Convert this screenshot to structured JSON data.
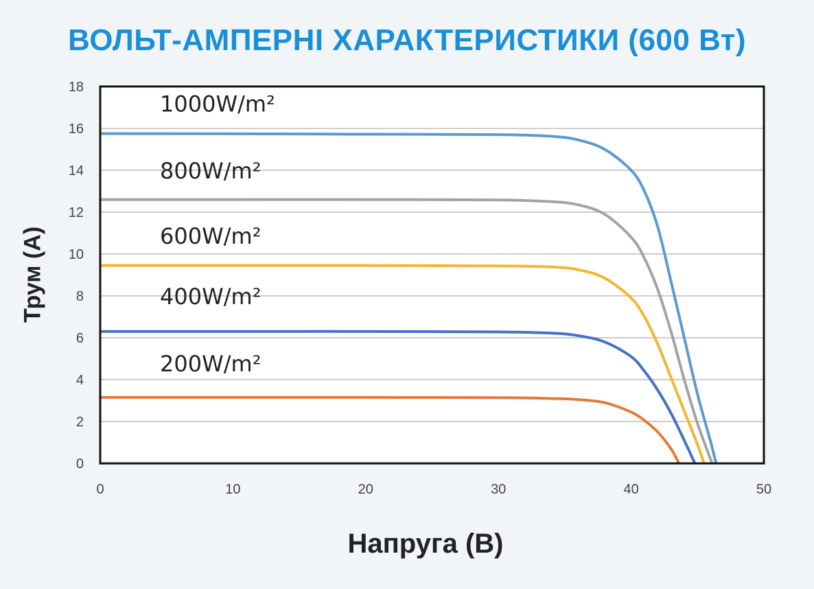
{
  "chart_data": {
    "type": "line",
    "title": "ВОЛЬТ-АМПЕРНІ ХАРАКТЕРИСТИКИ (600 Вт)",
    "xlabel": "Напруга (В)",
    "ylabel": "Трум (А)",
    "xlim": [
      0,
      50
    ],
    "ylim": [
      0,
      18
    ],
    "xticks": [
      "0",
      "10",
      "20",
      "30",
      "40",
      "50"
    ],
    "yticks": [
      "0",
      "2",
      "4",
      "6",
      "8",
      "10",
      "12",
      "14",
      "16",
      "18"
    ],
    "grid": "horizontal",
    "series": [
      {
        "name": "1000W/m²",
        "color": "#5b9bd0",
        "label_x": 4.5,
        "label_y": 16.8,
        "points": [
          [
            0,
            15.75
          ],
          [
            10,
            15.74
          ],
          [
            20,
            15.72
          ],
          [
            30,
            15.7
          ],
          [
            34,
            15.62
          ],
          [
            36,
            15.45
          ],
          [
            38,
            15.0
          ],
          [
            40,
            14.0
          ],
          [
            41,
            13.0
          ],
          [
            42,
            11.3
          ],
          [
            43,
            8.7
          ],
          [
            44,
            6.0
          ],
          [
            45,
            3.3
          ],
          [
            46,
            1.0
          ],
          [
            46.4,
            0
          ]
        ]
      },
      {
        "name": "800W/m²",
        "color": "#a3a3a3",
        "label_x": 4.5,
        "label_y": 13.6,
        "points": [
          [
            0,
            12.6
          ],
          [
            10,
            12.6
          ],
          [
            20,
            12.6
          ],
          [
            30,
            12.58
          ],
          [
            34,
            12.5
          ],
          [
            36,
            12.35
          ],
          [
            38,
            11.9
          ],
          [
            40,
            10.8
          ],
          [
            41,
            9.8
          ],
          [
            42,
            8.3
          ],
          [
            43,
            6.3
          ],
          [
            44,
            4.0
          ],
          [
            45,
            1.9
          ],
          [
            46.1,
            0
          ]
        ]
      },
      {
        "name": "600W/m²",
        "color": "#f2b631",
        "label_x": 4.5,
        "label_y": 10.5,
        "points": [
          [
            0,
            9.45
          ],
          [
            10,
            9.45
          ],
          [
            20,
            9.45
          ],
          [
            30,
            9.43
          ],
          [
            34,
            9.38
          ],
          [
            36,
            9.25
          ],
          [
            38,
            8.85
          ],
          [
            40,
            7.9
          ],
          [
            41,
            7.0
          ],
          [
            42,
            5.7
          ],
          [
            43,
            4.1
          ],
          [
            44,
            2.5
          ],
          [
            45,
            0.9
          ],
          [
            45.5,
            0
          ]
        ]
      },
      {
        "name": "400W/m²",
        "color": "#4472c4",
        "label_x": 4.5,
        "label_y": 7.6,
        "points": [
          [
            0,
            6.3
          ],
          [
            10,
            6.3
          ],
          [
            20,
            6.3
          ],
          [
            30,
            6.28
          ],
          [
            34,
            6.22
          ],
          [
            36,
            6.1
          ],
          [
            38,
            5.8
          ],
          [
            40,
            5.1
          ],
          [
            41,
            4.4
          ],
          [
            42,
            3.5
          ],
          [
            43,
            2.4
          ],
          [
            44,
            1.1
          ],
          [
            44.8,
            0
          ]
        ]
      },
      {
        "name": "200W/m²",
        "color": "#e07b3c",
        "label_x": 4.5,
        "label_y": 4.4,
        "points": [
          [
            0,
            3.15
          ],
          [
            10,
            3.15
          ],
          [
            20,
            3.15
          ],
          [
            30,
            3.14
          ],
          [
            34,
            3.1
          ],
          [
            36,
            3.05
          ],
          [
            38,
            2.9
          ],
          [
            40,
            2.45
          ],
          [
            41,
            2.05
          ],
          [
            42,
            1.5
          ],
          [
            43,
            0.7
          ],
          [
            43.6,
            0
          ]
        ]
      }
    ]
  }
}
